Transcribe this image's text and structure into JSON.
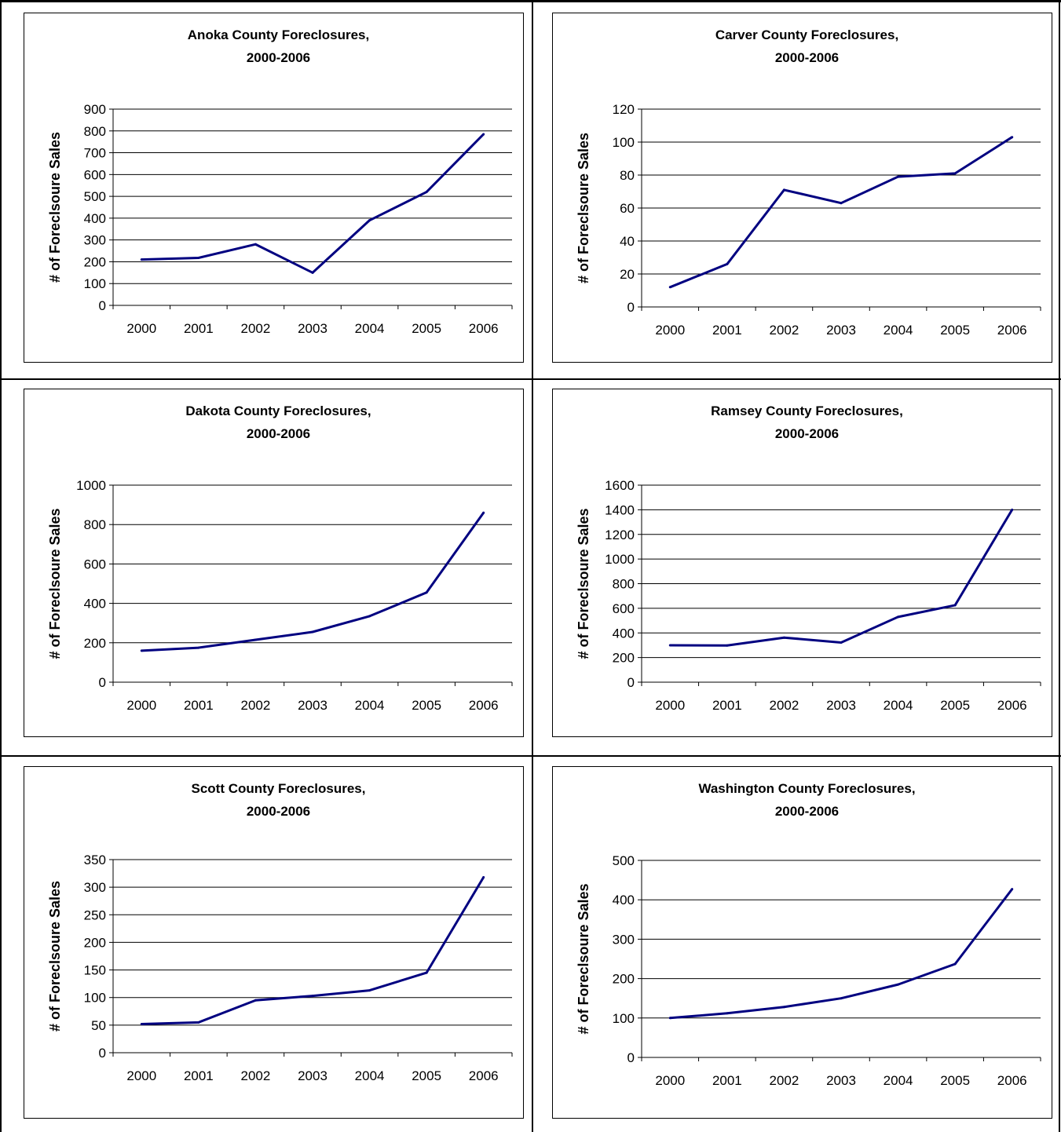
{
  "colors": {
    "series": "#000080",
    "grid": "#000000",
    "border": "#000000",
    "background": "#ffffff"
  },
  "chart_data": [
    {
      "type": "line",
      "title": "Anoka County  Foreclosures,",
      "subtitle": "2000-2006",
      "ylabel": "# of Foreclsoure Sales",
      "xlabel": "",
      "categories": [
        "2000",
        "2001",
        "2002",
        "2003",
        "2004",
        "2005",
        "2006"
      ],
      "values": [
        210,
        218,
        280,
        150,
        390,
        520,
        785
      ],
      "yticks": [
        "0",
        "100",
        "200",
        "300",
        "400",
        "500",
        "600",
        "700",
        "800",
        "900"
      ],
      "ylim": [
        0,
        900
      ],
      "grid": true,
      "legend": "none"
    },
    {
      "type": "line",
      "title": "Carver County  Foreclosures,",
      "subtitle": "2000-2006",
      "ylabel": "# of Foreclsoure Sales",
      "xlabel": "",
      "categories": [
        "2000",
        "2001",
        "2002",
        "2003",
        "2004",
        "2005",
        "2006"
      ],
      "values": [
        12,
        26,
        71,
        63,
        79,
        81,
        103
      ],
      "yticks": [
        "0",
        "20",
        "40",
        "60",
        "80",
        "100",
        "120"
      ],
      "ylim": [
        0,
        120
      ],
      "grid": true,
      "legend": "none"
    },
    {
      "type": "line",
      "title": "Dakota County  Foreclosures,",
      "subtitle": "2000-2006",
      "ylabel": "# of Foreclsoure Sales",
      "xlabel": "",
      "categories": [
        "2000",
        "2001",
        "2002",
        "2003",
        "2004",
        "2005",
        "2006"
      ],
      "values": [
        160,
        175,
        215,
        255,
        335,
        455,
        860
      ],
      "yticks": [
        "0",
        "200",
        "400",
        "600",
        "800",
        "1000"
      ],
      "ylim": [
        0,
        1000
      ],
      "grid": true,
      "legend": "none"
    },
    {
      "type": "line",
      "title": "Ramsey County Foreclosures,",
      "subtitle": "2000-2006",
      "ylabel": "# of Foreclsoure Sales",
      "xlabel": "",
      "categories": [
        "2000",
        "2001",
        "2002",
        "2003",
        "2004",
        "2005",
        "2006"
      ],
      "values": [
        300,
        298,
        362,
        322,
        530,
        625,
        1400
      ],
      "yticks": [
        "0",
        "200",
        "400",
        "600",
        "800",
        "1000",
        "1200",
        "1400",
        "1600"
      ],
      "ylim": [
        0,
        1600
      ],
      "grid": true,
      "legend": "none"
    },
    {
      "type": "line",
      "title": "Scott County Foreclosures,",
      "subtitle": "2000-2006",
      "ylabel": "# of Foreclsoure Sales",
      "xlabel": "",
      "categories": [
        "2000",
        "2001",
        "2002",
        "2003",
        "2004",
        "2005",
        "2006"
      ],
      "values": [
        52,
        55,
        95,
        103,
        113,
        145,
        318
      ],
      "yticks": [
        "0",
        "50",
        "100",
        "150",
        "200",
        "250",
        "300",
        "350"
      ],
      "ylim": [
        0,
        350
      ],
      "grid": true,
      "legend": "none"
    },
    {
      "type": "line",
      "title": "Washington County Foreclosures,",
      "subtitle": "2000-2006",
      "ylabel": "# of Foreclsoure Sales",
      "xlabel": "",
      "categories": [
        "2000",
        "2001",
        "2002",
        "2003",
        "2004",
        "2005",
        "2006"
      ],
      "values": [
        100,
        112,
        128,
        150,
        185,
        237,
        427
      ],
      "yticks": [
        "0",
        "100",
        "200",
        "300",
        "400",
        "500"
      ],
      "ylim": [
        0,
        500
      ],
      "grid": true,
      "legend": "none"
    }
  ]
}
